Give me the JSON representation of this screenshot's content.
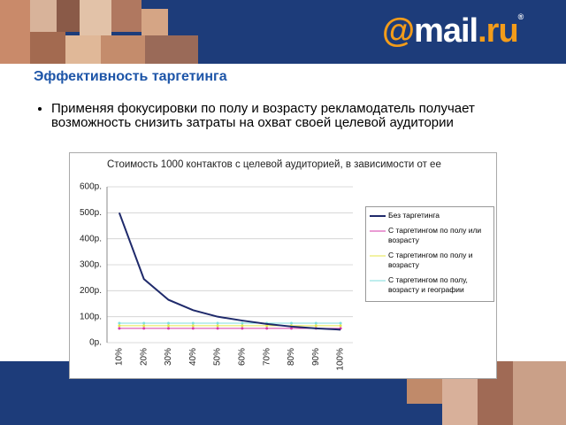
{
  "slide": {
    "logo": {
      "at": "@",
      "name": "mail",
      "domain": ".ru",
      "mark": "®"
    },
    "heading": "Эффективность таргетинга",
    "bullet": "Применяя фокусировки по полу и возрасту рекламодатель получает возможность снизить затраты на охват своей целевой аудитории"
  },
  "chart_data": {
    "type": "line",
    "title": "Стоимость 1000 контактов с целевой аудиторией, в зависимости от ее",
    "categories": [
      "10%",
      "20%",
      "30%",
      "40%",
      "50%",
      "60%",
      "70%",
      "80%",
      "90%",
      "100%"
    ],
    "series": [
      {
        "name": "Без таргетинга",
        "color": "#1f2a6b",
        "values": [
          500,
          245,
          165,
          125,
          100,
          85,
          72,
          62,
          55,
          50
        ]
      },
      {
        "name": "С таргетингом по полу или возрасту",
        "color": "#d63aa8",
        "values": [
          55,
          55,
          55,
          55,
          55,
          55,
          55,
          55,
          55,
          55
        ]
      },
      {
        "name": "С таргетингом по полу и возрасту",
        "color": "#e6e64a",
        "values": [
          65,
          65,
          65,
          65,
          65,
          65,
          65,
          65,
          65,
          65
        ]
      },
      {
        "name": "С таргетингом по полу, возрасту и географии",
        "color": "#7fdede",
        "values": [
          75,
          75,
          75,
          75,
          75,
          75,
          75,
          75,
          75,
          75
        ]
      }
    ],
    "ylim": [
      0,
      600
    ],
    "yticks": [
      {
        "value": 0,
        "label": "0р."
      },
      {
        "value": 100,
        "label": "100р."
      },
      {
        "value": 200,
        "label": "200р."
      },
      {
        "value": 300,
        "label": "300р."
      },
      {
        "value": 400,
        "label": "400р."
      },
      {
        "value": 500,
        "label": "500р."
      },
      {
        "value": 600,
        "label": "600р."
      }
    ],
    "grid": true,
    "legend": "right"
  }
}
